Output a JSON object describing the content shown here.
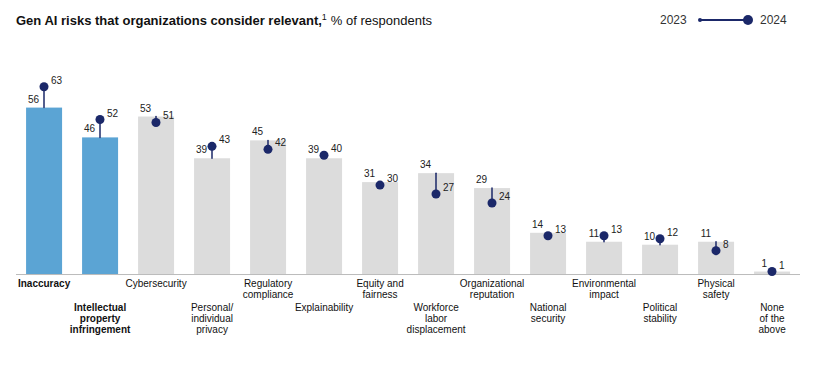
{
  "chart_data": {
    "type": "bar",
    "title": "Gen AI risks that organizations consider relevant,",
    "annotations": [
      "1"
    ],
    "subtitle": "% of respondents",
    "categories": [
      "Inaccuracy",
      "Intellectual\nproperty\ninfringement",
      "Cybersecurity",
      "Personal/\nindividual\nprivacy",
      "Regulatory\ncompliance",
      "Explainability",
      "Equity and\nfairness",
      "Workforce\nlabor\ndisplacement",
      "Organizational\nreputation",
      "National\nsecurity",
      "Environmental\nimpact",
      "Political\nstability",
      "Physical\nsafety",
      "None\nof the\nabove"
    ],
    "series": [
      {
        "name": "2023",
        "type": "bar",
        "colors": [
          "#5BA4D4",
          "#5BA4D4",
          "#DCDCDC",
          "#DCDCDC",
          "#DCDCDC",
          "#DCDCDC",
          "#DCDCDC",
          "#DCDCDC",
          "#DCDCDC",
          "#DCDCDC",
          "#DCDCDC",
          "#DCDCDC",
          "#DCDCDC",
          "#DCDCDC"
        ],
        "values": [
          56,
          46,
          53,
          39,
          45,
          39,
          31,
          34,
          29,
          14,
          11,
          10,
          11,
          1
        ]
      },
      {
        "name": "2024",
        "type": "scatter",
        "color": "#1B2869",
        "marker": "circle",
        "values": [
          63,
          52,
          51,
          43,
          42,
          40,
          30,
          27,
          24,
          13,
          13,
          12,
          8,
          1
        ]
      }
    ],
    "ylim": [
      -28,
      78
    ],
    "tick_labels": "x",
    "data_labels": true,
    "grid": false,
    "legend": "upper right"
  }
}
